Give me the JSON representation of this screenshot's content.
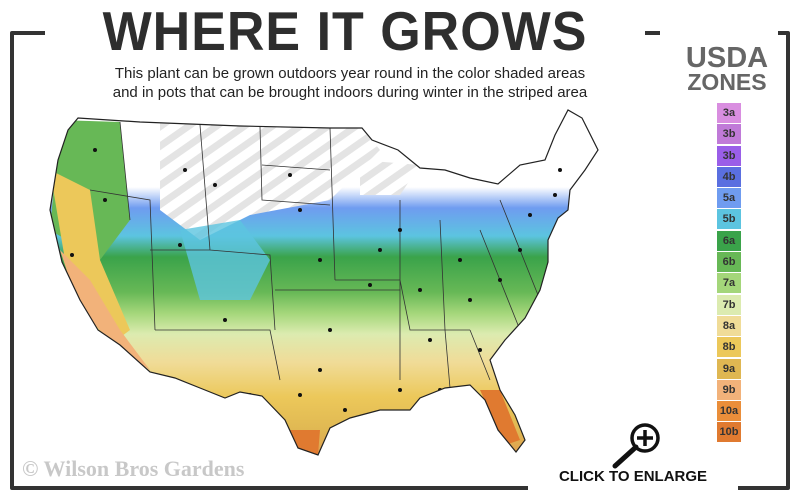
{
  "header": {
    "title": "WHERE IT GROWS",
    "subtitle_line1": "This plant can be grown outdoors year round in the color shaded areas",
    "subtitle_line2": "and in pots that can be brought indoors during winter in the striped area"
  },
  "legend": {
    "title_line1": "USDA",
    "title_line2": "ZONES",
    "zones": [
      {
        "label": "3a",
        "color": "#d98ee0"
      },
      {
        "label": "3b",
        "color": "#c07ad8"
      },
      {
        "label": "3b",
        "color": "#9a5ee8"
      },
      {
        "label": "4b",
        "color": "#5a6fe0"
      },
      {
        "label": "5a",
        "color": "#6f9cf0"
      },
      {
        "label": "5b",
        "color": "#5cc4e0"
      },
      {
        "label": "6a",
        "color": "#3aa34a"
      },
      {
        "label": "6b",
        "color": "#67b856"
      },
      {
        "label": "7a",
        "color": "#a4d67a"
      },
      {
        "label": "7b",
        "color": "#dcebb0"
      },
      {
        "label": "8a",
        "color": "#f0dc98"
      },
      {
        "label": "8b",
        "color": "#ecc85a"
      },
      {
        "label": "9a",
        "color": "#dfb752"
      },
      {
        "label": "9b",
        "color": "#f2b27a"
      },
      {
        "label": "10a",
        "color": "#ea8e3a"
      },
      {
        "label": "10b",
        "color": "#e07a30"
      }
    ]
  },
  "footer": {
    "copyright": "© Wilson Bros Gardens",
    "enlarge_label": "CLICK TO ENLARGE",
    "enlarge_icon": "magnifier-plus-icon"
  }
}
